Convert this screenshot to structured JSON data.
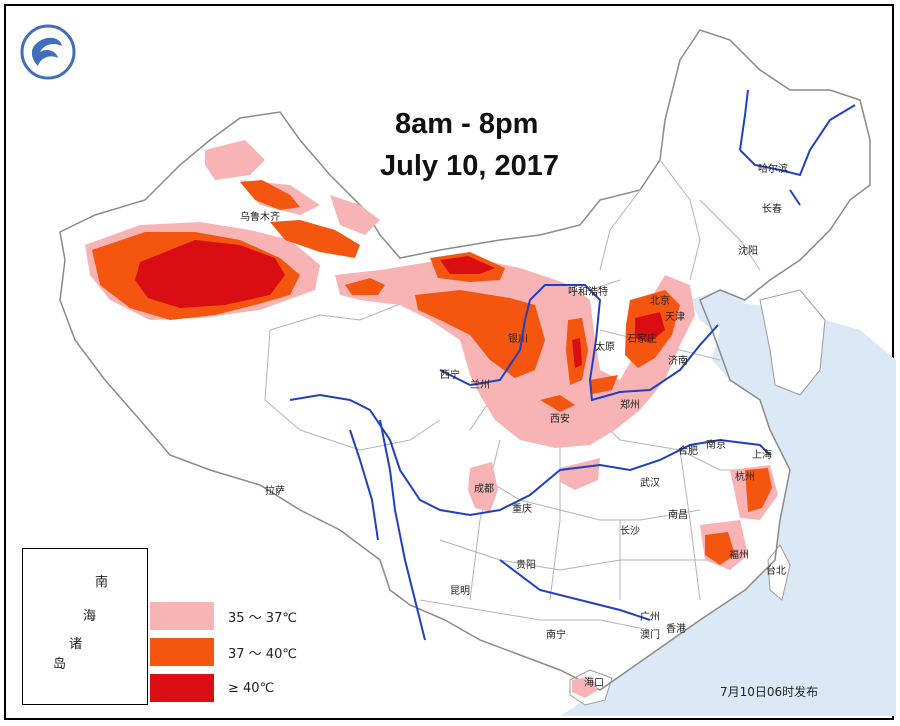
{
  "title_line1": "8am - 8pm",
  "title_line2": "July 10, 2017",
  "cities": {
    "urumqi": "乌鲁木齐",
    "harbin": "哈尔滨",
    "changchun": "长春",
    "shenyang": "沈阳",
    "hohhot": "呼和浩特",
    "beijing": "北京",
    "tianjin": "天津",
    "yinchuan": "银川",
    "taiyuan": "太原",
    "shijiazhuang": "石家庄",
    "jinan": "济南",
    "xining": "西宁",
    "lanzhou": "兰州",
    "zhengzhou": "郑州",
    "xian": "西安",
    "hefei": "合肥",
    "nanjing": "南京",
    "shanghai": "上海",
    "wuhan": "武汉",
    "hangzhou": "杭州",
    "chengdu": "成都",
    "lhasa": "拉萨",
    "chongqing": "重庆",
    "nanchang": "南昌",
    "changsha": "长沙",
    "fuzhou": "福州",
    "guiyang": "贵阳",
    "taipei": "台北",
    "kunming": "昆明",
    "guangzhou": "广州",
    "hongkong": "香港",
    "macau": "澳门",
    "nanning": "南宁",
    "haikou": "海口"
  },
  "legend": [
    {
      "label": "35 ～ 37℃",
      "color": "#f8b4b4"
    },
    {
      "label": "37 ～ 40℃",
      "color": "#f5560f"
    },
    {
      "label": "≥ 40℃",
      "color": "#d90d12"
    }
  ],
  "inset": {
    "nan": "南",
    "hai": "海",
    "zhu": "诸",
    "dao": "岛"
  },
  "timestamp": "7月10日06时发布",
  "colors": {
    "land": "#ffffff",
    "sea": "#dbe9f6",
    "border": "#9a9a9a",
    "river": "#1f3fc4"
  },
  "icons": {
    "logo": "weather-service-logo-icon"
  }
}
